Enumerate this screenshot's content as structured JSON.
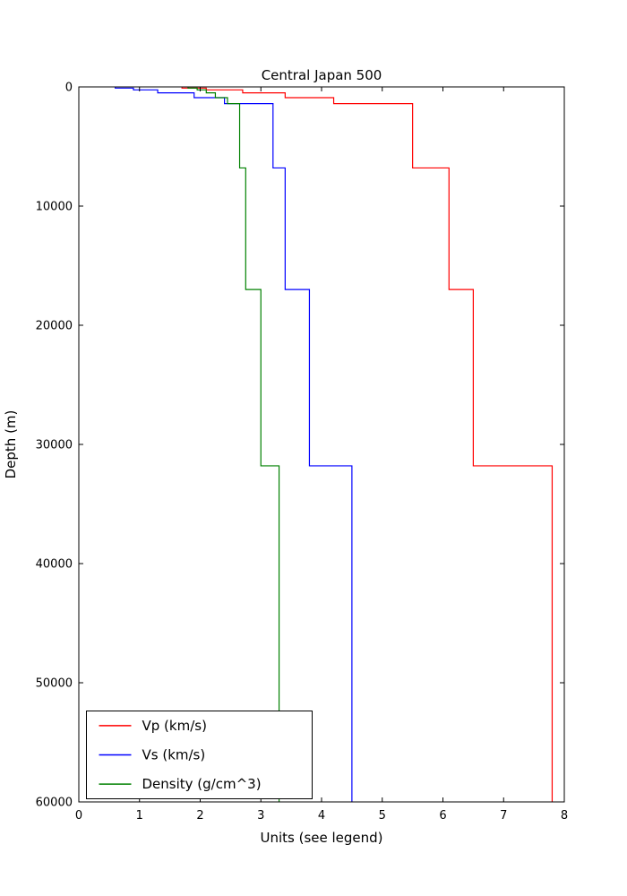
{
  "chart_data": {
    "type": "line",
    "style": "step-depth-profile",
    "title": "Central Japan 500",
    "xlabel": "Units (see legend)",
    "ylabel": "Depth (m)",
    "xlim": [
      0,
      8
    ],
    "ylim": [
      0,
      60000
    ],
    "y_axis_inverted": true,
    "grid": false,
    "xticks": [
      0,
      1,
      2,
      3,
      4,
      5,
      6,
      7,
      8
    ],
    "yticks": [
      0,
      10000,
      20000,
      30000,
      40000,
      50000,
      60000
    ],
    "frame_color": "#000000",
    "background_color": "#ffffff",
    "legend": {
      "position": "lower left",
      "entries": [
        {
          "label": "Vp (km/s)",
          "color": "#ff0000"
        },
        {
          "label": "Vs (km/s)",
          "color": "#0000ff"
        },
        {
          "label": "Density (g/cm^3)",
          "color": "#008000"
        }
      ]
    },
    "layer_boundaries_m": [
      0,
      100,
      250,
      500,
      900,
      1400,
      6800,
      17000,
      31800,
      60000
    ],
    "series": [
      {
        "name": "Vp (km/s)",
        "unit": "km/s",
        "color": "#ff0000",
        "values_per_layer": [
          1.7,
          2.1,
          2.7,
          3.4,
          4.2,
          5.5,
          6.1,
          6.5,
          7.8
        ]
      },
      {
        "name": "Vs (km/s)",
        "unit": "km/s",
        "color": "#0000ff",
        "values_per_layer": [
          0.6,
          0.9,
          1.3,
          1.9,
          2.4,
          3.2,
          3.4,
          3.8,
          4.5
        ]
      },
      {
        "name": "Density (g/cm^3)",
        "unit": "g/cm^3",
        "color": "#008000",
        "values_per_layer": [
          1.8,
          1.95,
          2.1,
          2.25,
          2.45,
          2.65,
          2.75,
          3.0,
          3.3
        ]
      }
    ]
  }
}
